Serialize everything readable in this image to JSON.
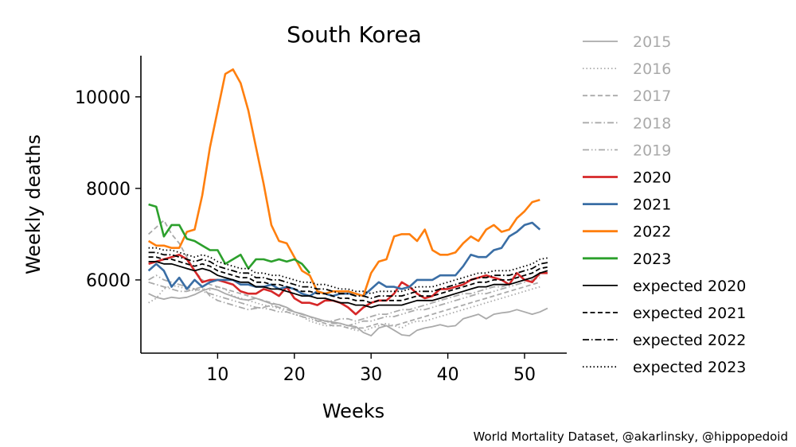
{
  "chart_data": {
    "type": "line",
    "title": "South Korea",
    "xlabel": "Weeks",
    "ylabel": "Weekly deaths",
    "xlim": [
      0,
      55.5
    ],
    "ylim": [
      4400,
      10900
    ],
    "xticks": [
      10,
      20,
      30,
      40,
      50
    ],
    "yticks": [
      6000,
      8000,
      10000
    ],
    "legend_position": "right",
    "grid": false,
    "series": [
      {
        "name": "2015",
        "color": "#aaaaaa",
        "dash": "solid",
        "x_start": 1,
        "values": [
          5700,
          5620,
          5580,
          5620,
          5600,
          5620,
          5680,
          5760,
          5820,
          5780,
          5700,
          5640,
          5580,
          5560,
          5600,
          5540,
          5480,
          5460,
          5400,
          5300,
          5260,
          5200,
          5150,
          5100,
          5080,
          5050,
          5000,
          4980,
          4850,
          4780,
          4950,
          5000,
          4900,
          4800,
          4780,
          4900,
          4950,
          4980,
          5020,
          4980,
          5000,
          5150,
          5200,
          5250,
          5150,
          5250,
          5280,
          5300,
          5350,
          5300,
          5250,
          5300,
          5380
        ]
      },
      {
        "name": "2016",
        "color": "#aaaaaa",
        "dash": "dotted",
        "x_start": 1,
        "values": [
          5500,
          5600,
          5800,
          5880,
          5850,
          5800,
          5760,
          5800,
          5780,
          5850,
          5800,
          5650,
          5600,
          5550,
          5500,
          5450,
          5420,
          5380,
          5300,
          5250,
          5200,
          5100,
          5050,
          5000,
          5000,
          5000,
          4950,
          4900,
          4880,
          4950,
          5000,
          5050,
          5000,
          4950,
          5050,
          5100,
          5100,
          5150,
          5200,
          5250,
          5300,
          5350,
          5400,
          5450,
          5500,
          5550,
          5600,
          5650,
          5700,
          5750,
          5800,
          5850
        ]
      },
      {
        "name": "2017",
        "color": "#aaaaaa",
        "dash": "dashed",
        "x_start": 1,
        "values": [
          7000,
          7150,
          7300,
          7000,
          6800,
          6500,
          6200,
          6000,
          5900,
          5850,
          5800,
          5750,
          5700,
          5650,
          5600,
          5550,
          5500,
          5450,
          5400,
          5300,
          5250,
          5200,
          5100,
          5050,
          5000,
          5000,
          4950,
          4950,
          4950,
          5000,
          5050,
          5000,
          5000,
          5050,
          5100,
          5150,
          5200,
          5250,
          5300,
          5350,
          5400,
          5450,
          5500,
          5550,
          5600,
          5650,
          5700,
          5750,
          5800,
          5850,
          5900,
          5950
        ]
      },
      {
        "name": "2018",
        "color": "#aaaaaa",
        "dash": "dashdot",
        "x_start": 1,
        "values": [
          5950,
          5900,
          5850,
          5800,
          5750,
          5750,
          5800,
          5850,
          5650,
          5550,
          5500,
          5450,
          5400,
          5350,
          5380,
          5400,
          5450,
          5400,
          5350,
          5300,
          5250,
          5200,
          5150,
          5100,
          5100,
          5150,
          5150,
          5100,
          5150,
          5200,
          5250,
          5250,
          5300,
          5350,
          5350,
          5400,
          5450,
          5500,
          5550,
          5600,
          5650,
          5700,
          5700,
          5750,
          5800,
          5850,
          5850,
          5900,
          5950,
          6000,
          6050,
          6100
        ]
      },
      {
        "name": "2019",
        "color": "#aaaaaa",
        "dash": "dashdotdot",
        "x_start": 1,
        "values": [
          6000,
          6100,
          6000,
          5950,
          5900,
          5850,
          5800,
          5750,
          5700,
          5650,
          5600,
          5550,
          5500,
          5450,
          5400,
          5380,
          5350,
          5300,
          5300,
          5250,
          5200,
          5150,
          5100,
          5100,
          5050,
          5050,
          5000,
          5050,
          5100,
          5100,
          5150,
          5200,
          5200,
          5250,
          5300,
          5350,
          5350,
          5400,
          5450,
          5500,
          5550,
          5600,
          5650,
          5700,
          5700,
          5750,
          5800,
          5850,
          5900,
          5950,
          6000,
          6050
        ]
      },
      {
        "name": "2020",
        "color": "#d62728",
        "dash": "solid",
        "x_start": 1,
        "values": [
          6350,
          6400,
          6450,
          6500,
          6550,
          6450,
          6200,
          5950,
          6000,
          6000,
          5950,
          5900,
          5750,
          5700,
          5700,
          5800,
          5750,
          5650,
          5850,
          5600,
          5500,
          5500,
          5450,
          5550,
          5550,
          5500,
          5400,
          5250,
          5400,
          5500,
          5550,
          5550,
          5700,
          5950,
          5850,
          5700,
          5600,
          5650,
          5800,
          5800,
          5850,
          5900,
          6000,
          6050,
          6100,
          6050,
          6000,
          5900,
          6150,
          6000,
          5950,
          6150,
          6150
        ]
      },
      {
        "name": "2021",
        "color": "#3a6ea5",
        "dash": "solid",
        "x_start": 1,
        "values": [
          6200,
          6350,
          6200,
          5850,
          6050,
          5800,
          6000,
          5850,
          5950,
          6000,
          6000,
          6000,
          5900,
          5900,
          5850,
          5850,
          5900,
          5800,
          5850,
          5800,
          5700,
          5650,
          5750,
          5700,
          5650,
          5700,
          5700,
          5700,
          5650,
          5800,
          5950,
          5850,
          5850,
          5800,
          5850,
          6000,
          6000,
          6000,
          6100,
          6100,
          6100,
          6300,
          6550,
          6500,
          6500,
          6650,
          6700,
          6950,
          7050,
          7200,
          7250,
          7100
        ]
      },
      {
        "name": "2022",
        "color": "#ff7f0e",
        "dash": "solid",
        "x_start": 1,
        "values": [
          6850,
          6750,
          6750,
          6700,
          6700,
          7050,
          7100,
          7850,
          8900,
          9700,
          10500,
          10600,
          10300,
          9700,
          8900,
          8100,
          7200,
          6850,
          6800,
          6500,
          6200,
          6100,
          5750,
          5700,
          5750,
          5750,
          5750,
          5700,
          5650,
          6150,
          6400,
          6450,
          6950,
          7000,
          7000,
          6850,
          7100,
          6650,
          6550,
          6550,
          6600,
          6800,
          6950,
          6850,
          7100,
          7200,
          7050,
          7100,
          7350,
          7500,
          7700,
          7750
        ]
      },
      {
        "name": "2023",
        "color": "#2ca02c",
        "dash": "solid",
        "x_start": 1,
        "values": [
          7650,
          7600,
          6950,
          7200,
          7200,
          6900,
          6850,
          6750,
          6650,
          6650,
          6350,
          6450,
          6550,
          6250,
          6450,
          6450,
          6400,
          6450,
          6400,
          6450,
          6350,
          6150
        ]
      },
      {
        "name": "expected 2020",
        "color": "#000000",
        "dash": "solid",
        "x_start": 1,
        "values": [
          6400,
          6400,
          6350,
          6350,
          6300,
          6250,
          6200,
          6250,
          6200,
          6100,
          6050,
          6000,
          5950,
          5950,
          5850,
          5850,
          5800,
          5800,
          5750,
          5700,
          5650,
          5650,
          5600,
          5600,
          5550,
          5500,
          5500,
          5450,
          5450,
          5400,
          5450,
          5450,
          5450,
          5450,
          5500,
          5550,
          5550,
          5550,
          5600,
          5650,
          5700,
          5750,
          5800,
          5850,
          5850,
          5900,
          5900,
          5900,
          5950,
          6000,
          6050,
          6150,
          6200
        ]
      },
      {
        "name": "expected 2021",
        "color": "#000000",
        "dash": "dashed",
        "x_start": 1,
        "values": [
          6500,
          6500,
          6450,
          6450,
          6400,
          6350,
          6300,
          6350,
          6300,
          6200,
          6150,
          6100,
          6050,
          6050,
          5950,
          5950,
          5900,
          5900,
          5850,
          5800,
          5750,
          5750,
          5700,
          5700,
          5650,
          5600,
          5600,
          5550,
          5550,
          5500,
          5550,
          5550,
          5550,
          5550,
          5600,
          5650,
          5650,
          5650,
          5700,
          5750,
          5800,
          5850,
          5900,
          5950,
          5950,
          6000,
          6000,
          6000,
          6050,
          6100,
          6150,
          6250,
          6280
        ]
      },
      {
        "name": "expected 2022",
        "color": "#000000",
        "dash": "dashdot",
        "x_start": 1,
        "values": [
          6600,
          6600,
          6550,
          6550,
          6500,
          6450,
          6400,
          6450,
          6400,
          6300,
          6250,
          6200,
          6150,
          6150,
          6050,
          6050,
          6000,
          6000,
          5950,
          5900,
          5850,
          5850,
          5800,
          5800,
          5750,
          5700,
          5700,
          5650,
          5650,
          5600,
          5650,
          5650,
          5650,
          5650,
          5700,
          5750,
          5750,
          5750,
          5800,
          5850,
          5900,
          5950,
          6000,
          6050,
          6050,
          6100,
          6100,
          6100,
          6150,
          6200,
          6250,
          6350,
          6380
        ]
      },
      {
        "name": "expected 2023",
        "color": "#000000",
        "dash": "dotted",
        "x_start": 1,
        "values": [
          6700,
          6700,
          6650,
          6650,
          6600,
          6550,
          6500,
          6550,
          6500,
          6400,
          6350,
          6300,
          6250,
          6250,
          6150,
          6150,
          6100,
          6100,
          6050,
          6000,
          5950,
          5950,
          5900,
          5900,
          5850,
          5800,
          5800,
          5750,
          5750,
          5700,
          5750,
          5750,
          5750,
          5750,
          5800,
          5850,
          5850,
          5850,
          5900,
          5950,
          6000,
          6050,
          6100,
          6150,
          6150,
          6200,
          6200,
          6200,
          6250,
          6300,
          6350,
          6450,
          6480
        ]
      }
    ]
  },
  "credit": "World Mortality Dataset, @akarlinsky, @hippopedoid"
}
